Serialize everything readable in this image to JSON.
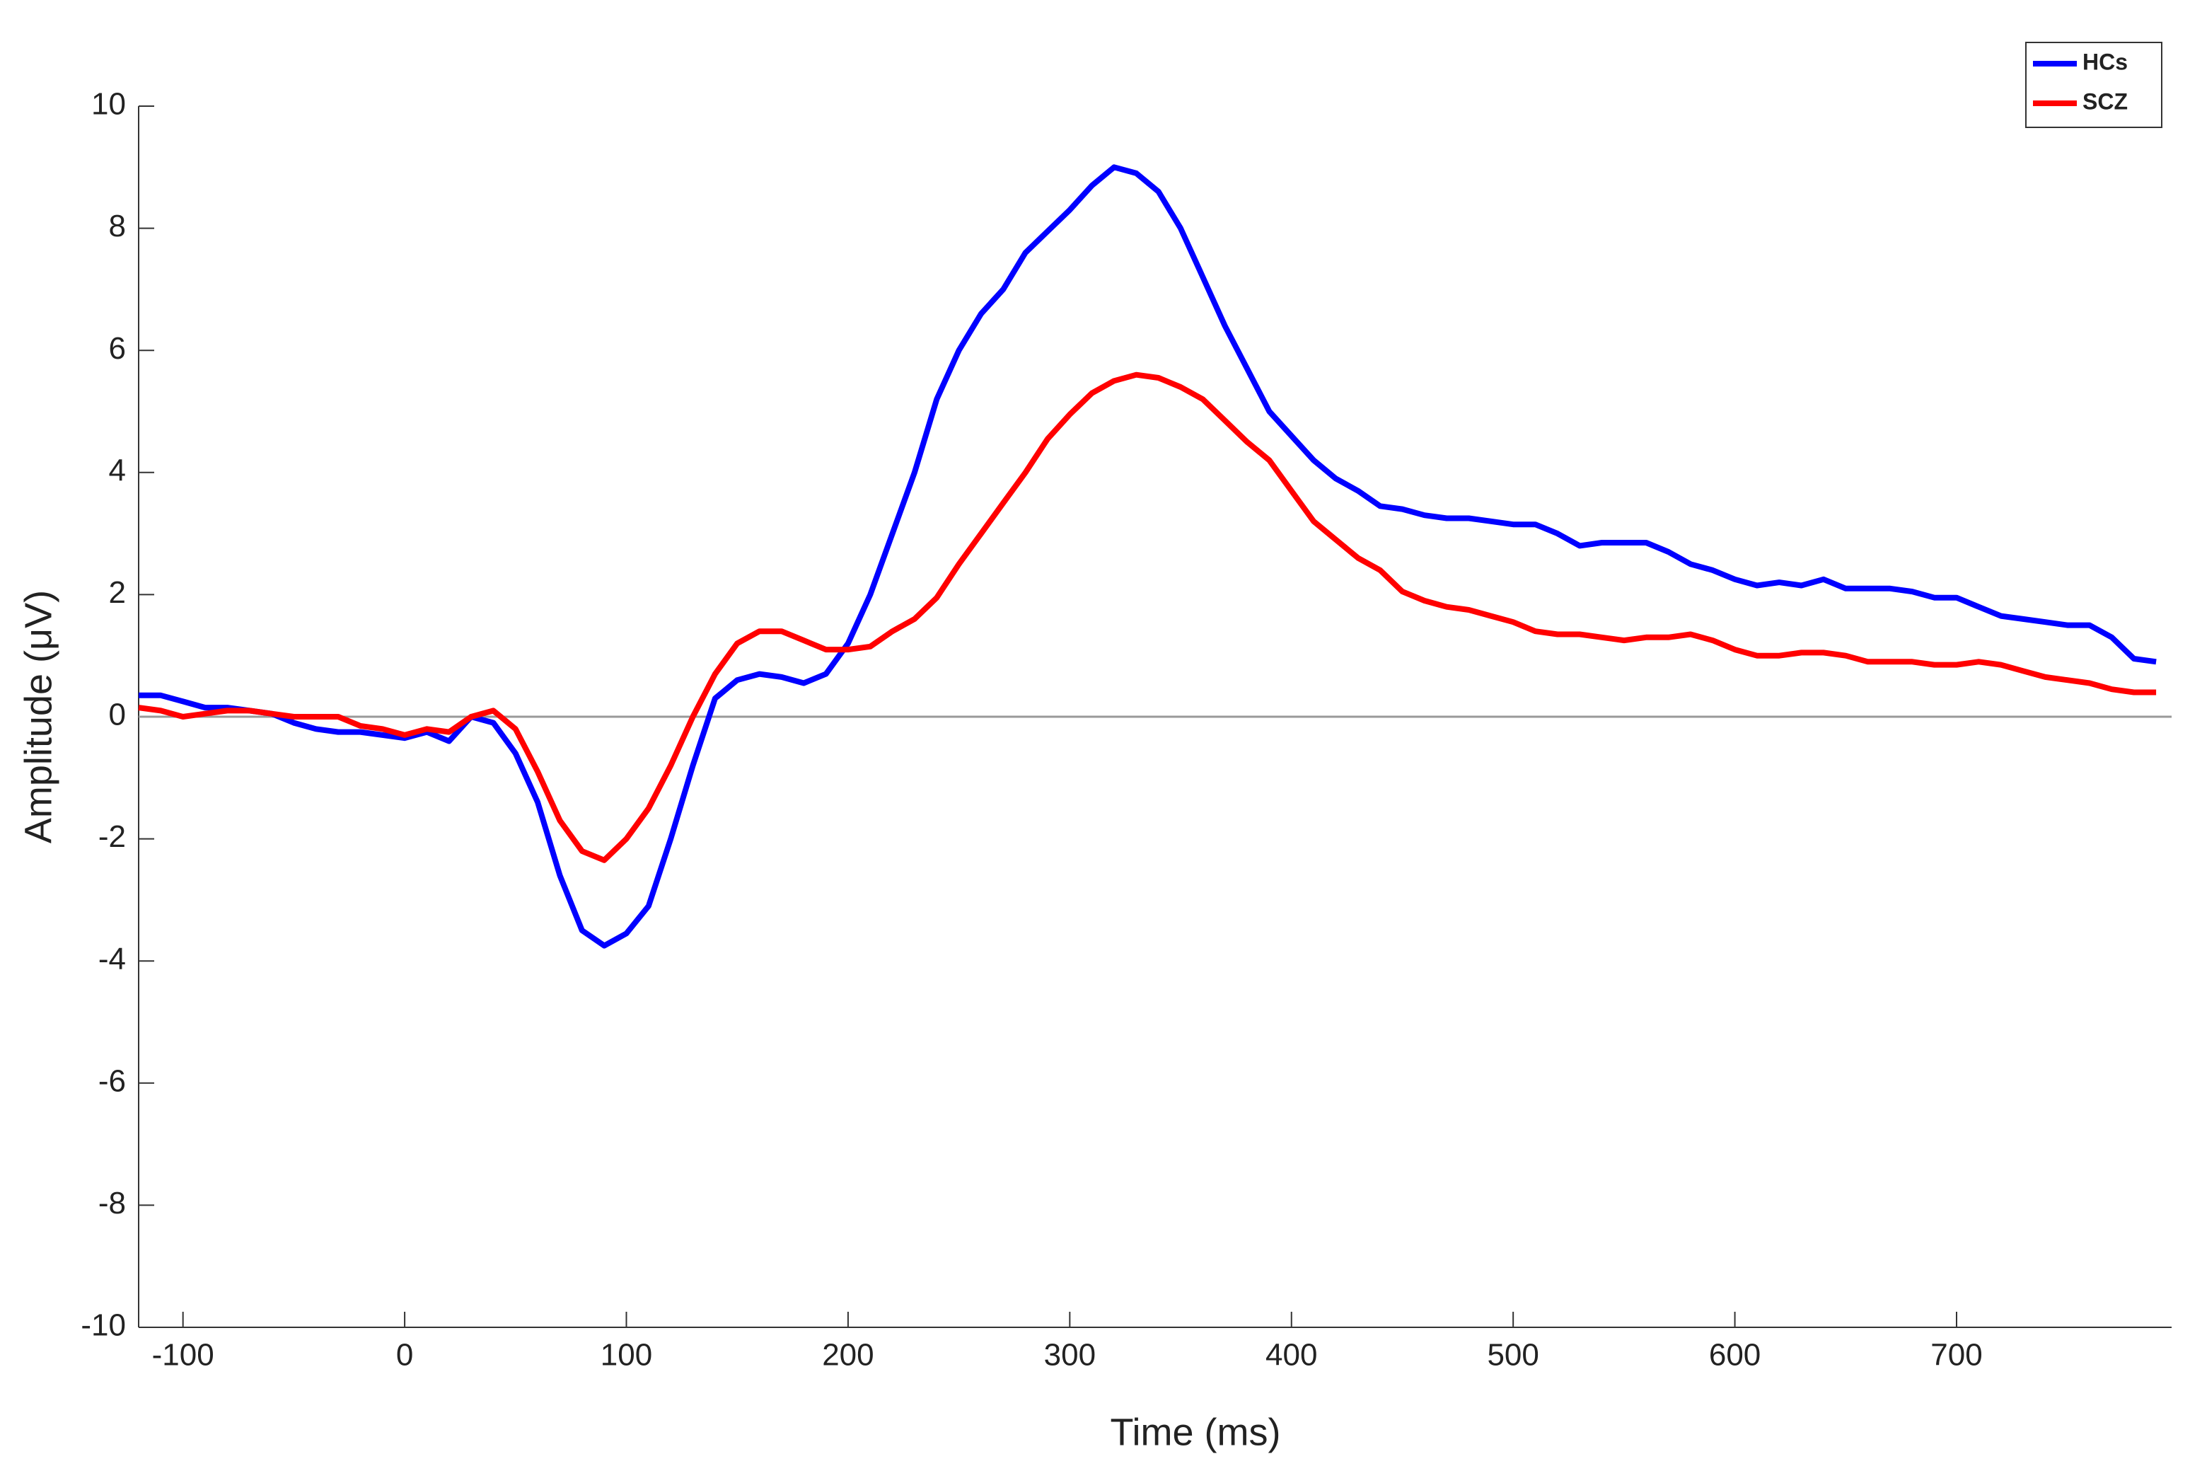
{
  "chart_data": {
    "type": "line",
    "xlabel": "Time (ms)",
    "ylabel": "Amplitude (μV)",
    "x": [
      -120,
      -110,
      -100,
      -90,
      -80,
      -70,
      -60,
      -50,
      -40,
      -30,
      -20,
      -10,
      0,
      10,
      20,
      30,
      40,
      50,
      60,
      70,
      80,
      90,
      100,
      110,
      120,
      130,
      140,
      150,
      160,
      170,
      180,
      190,
      200,
      210,
      220,
      230,
      240,
      250,
      260,
      270,
      280,
      290,
      300,
      310,
      320,
      330,
      340,
      350,
      360,
      370,
      380,
      390,
      400,
      410,
      420,
      430,
      440,
      450,
      460,
      470,
      480,
      490,
      500,
      510,
      520,
      530,
      540,
      550,
      560,
      570,
      580,
      590,
      600,
      610,
      620,
      630,
      640,
      650,
      660,
      670,
      680,
      690,
      700,
      710,
      720,
      730,
      740,
      750,
      760,
      770,
      780,
      790
    ],
    "series": [
      {
        "name": "HCs",
        "color": "#0000ff",
        "values": [
          0.35,
          0.35,
          0.25,
          0.15,
          0.15,
          0.1,
          0.05,
          -0.1,
          -0.2,
          -0.25,
          -0.25,
          -0.3,
          -0.35,
          -0.25,
          -0.4,
          0.0,
          -0.1,
          -0.6,
          -1.4,
          -2.6,
          -3.5,
          -3.75,
          -3.55,
          -3.1,
          -2.0,
          -0.8,
          0.3,
          0.6,
          0.7,
          0.65,
          0.55,
          0.7,
          1.2,
          2.0,
          3.0,
          4.0,
          5.2,
          6.0,
          6.6,
          7.0,
          7.6,
          7.95,
          8.3,
          8.7,
          9.0,
          8.9,
          8.6,
          8.0,
          7.2,
          6.4,
          5.7,
          5.0,
          4.6,
          4.2,
          3.9,
          3.7,
          3.45,
          3.4,
          3.3,
          3.25,
          3.25,
          3.2,
          3.15,
          3.15,
          3.0,
          2.8,
          2.85,
          2.85,
          2.85,
          2.7,
          2.5,
          2.4,
          2.25,
          2.15,
          2.2,
          2.15,
          2.25,
          2.1,
          2.1,
          2.1,
          2.05,
          1.95,
          1.95,
          1.8,
          1.65,
          1.6,
          1.55,
          1.5,
          1.5,
          1.3,
          0.95,
          0.9
        ]
      },
      {
        "name": "SCZ",
        "color": "#ff0000",
        "values": [
          0.15,
          0.1,
          0.0,
          0.05,
          0.1,
          0.1,
          0.05,
          0.0,
          0.0,
          0.0,
          -0.15,
          -0.2,
          -0.3,
          -0.2,
          -0.25,
          0.0,
          0.1,
          -0.2,
          -0.9,
          -1.7,
          -2.2,
          -2.35,
          -2.0,
          -1.5,
          -0.8,
          0.0,
          0.7,
          1.2,
          1.4,
          1.4,
          1.25,
          1.1,
          1.1,
          1.15,
          1.4,
          1.6,
          1.95,
          2.5,
          3.0,
          3.5,
          4.0,
          4.55,
          4.95,
          5.3,
          5.5,
          5.6,
          5.55,
          5.4,
          5.2,
          4.85,
          4.5,
          4.2,
          3.7,
          3.2,
          2.9,
          2.6,
          2.4,
          2.05,
          1.9,
          1.8,
          1.75,
          1.65,
          1.55,
          1.4,
          1.35,
          1.35,
          1.3,
          1.25,
          1.3,
          1.3,
          1.35,
          1.25,
          1.1,
          1.0,
          1.0,
          1.05,
          1.05,
          1.0,
          0.9,
          0.9,
          0.9,
          0.85,
          0.85,
          0.9,
          0.85,
          0.75,
          0.65,
          0.6,
          0.55,
          0.45,
          0.4,
          0.4
        ]
      }
    ],
    "xlim": [
      -120,
      797
    ],
    "xticks": [
      -100,
      0,
      100,
      200,
      300,
      400,
      500,
      600,
      700
    ],
    "ylim": [
      -10,
      10
    ],
    "yticks": [
      -10,
      -8,
      -6,
      -4,
      -2,
      0,
      2,
      4,
      6,
      8,
      10
    ],
    "zero_line": true,
    "legend": "upper right"
  }
}
